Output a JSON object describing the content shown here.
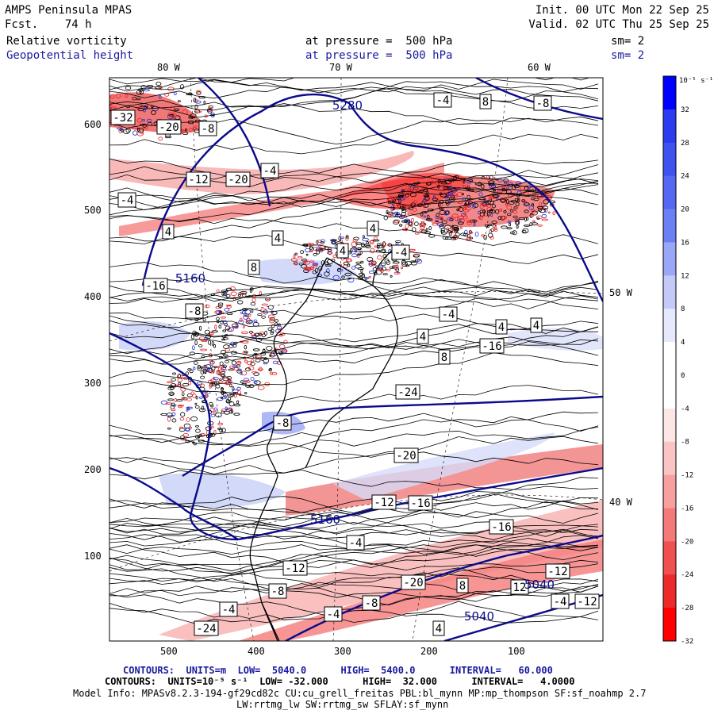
{
  "header": {
    "model": "AMPS Peninsula MPAS",
    "fcst": "Fcst.    74 h",
    "init": "Init. 00 UTC Mon 22 Sep 25",
    "valid": "Valid. 02 UTC Thu 25 Sep 25",
    "field1_name": "Relative vorticity",
    "field1_pressure": "at pressure =  500 hPa",
    "field1_sm": "sm= 2",
    "field2_name": "Geopotential height",
    "field2_pressure": "at pressure =  500 hPa",
    "field2_sm": "sm= 2"
  },
  "map": {
    "lon_labels_top": [
      "80 W",
      "70 W",
      "60 W"
    ],
    "lon_labels_right": [
      "50 W",
      "40 W"
    ],
    "y_ticks": [
      "600",
      "500",
      "400",
      "300",
      "200",
      "100"
    ],
    "x_ticks": [
      "500",
      "400",
      "300",
      "200",
      "100"
    ],
    "height_contour_labels": [
      "5280",
      "5160",
      "5040",
      "5040",
      "5160"
    ],
    "vorticity_labels": [
      "-32",
      "-20",
      "-8",
      "-12",
      "-20",
      "-4",
      "-4",
      "4",
      "4",
      "8",
      "-16",
      "-8",
      "-4",
      "4",
      "4",
      "4",
      "8",
      "-24",
      "-20",
      "-16",
      "-12",
      "-16",
      "-4",
      "-12",
      "-8",
      "-4",
      "4",
      "8",
      "12",
      "-12",
      "-20",
      "-8",
      "-4",
      "-24",
      "-16",
      "-4",
      "-12",
      "-8",
      "4",
      "-4",
      "-8",
      "8",
      "-4",
      "4"
    ],
    "colors": {
      "land": "#000000",
      "geopotential": "#0a0a8c",
      "positive_vort": "#e8203a",
      "negative_vort": "#3a50e0"
    }
  },
  "colorbar": {
    "unit_label": "10⁻⁵ s⁻¹",
    "labels": [
      "32",
      "28",
      "24",
      "20",
      "16",
      "12",
      "8",
      "4",
      "0",
      "-4",
      "-8",
      "-12",
      "-16",
      "-20",
      "-24",
      "-28",
      "-32"
    ],
    "colors": [
      "#0000ff",
      "#2a3bf0",
      "#3e52f0",
      "#5468f2",
      "#6c80f4",
      "#9aa6f6",
      "#c4caf8",
      "#e6e8fb",
      "#ffffff",
      "#ffffff",
      "#fde6e6",
      "#fbc4c4",
      "#f8a0a0",
      "#f47a7a",
      "#f05050",
      "#ec2a2a",
      "#ff0000"
    ]
  },
  "footer": {
    "contours1": "CONTOURS:  UNITS=m  LOW=  5040.0      HIGH=  5400.0      INTERVAL=   60.000",
    "contours2": "CONTOURS:  UNITS=10⁻⁵ s⁻¹  LOW= -32.000      HIGH=  32.000      INTERVAL=   4.0000",
    "model_info": "Model Info: MPASv8.2.3-194-gf29cd82c CU:cu_grell_freitas PBL:bl_mynn MP:mp_thompson SF:sf_noahmp 2.7",
    "model_info2": "LW:rrtmg_lw SW:rrtmg_sw SFLAY:sf_mynn"
  }
}
